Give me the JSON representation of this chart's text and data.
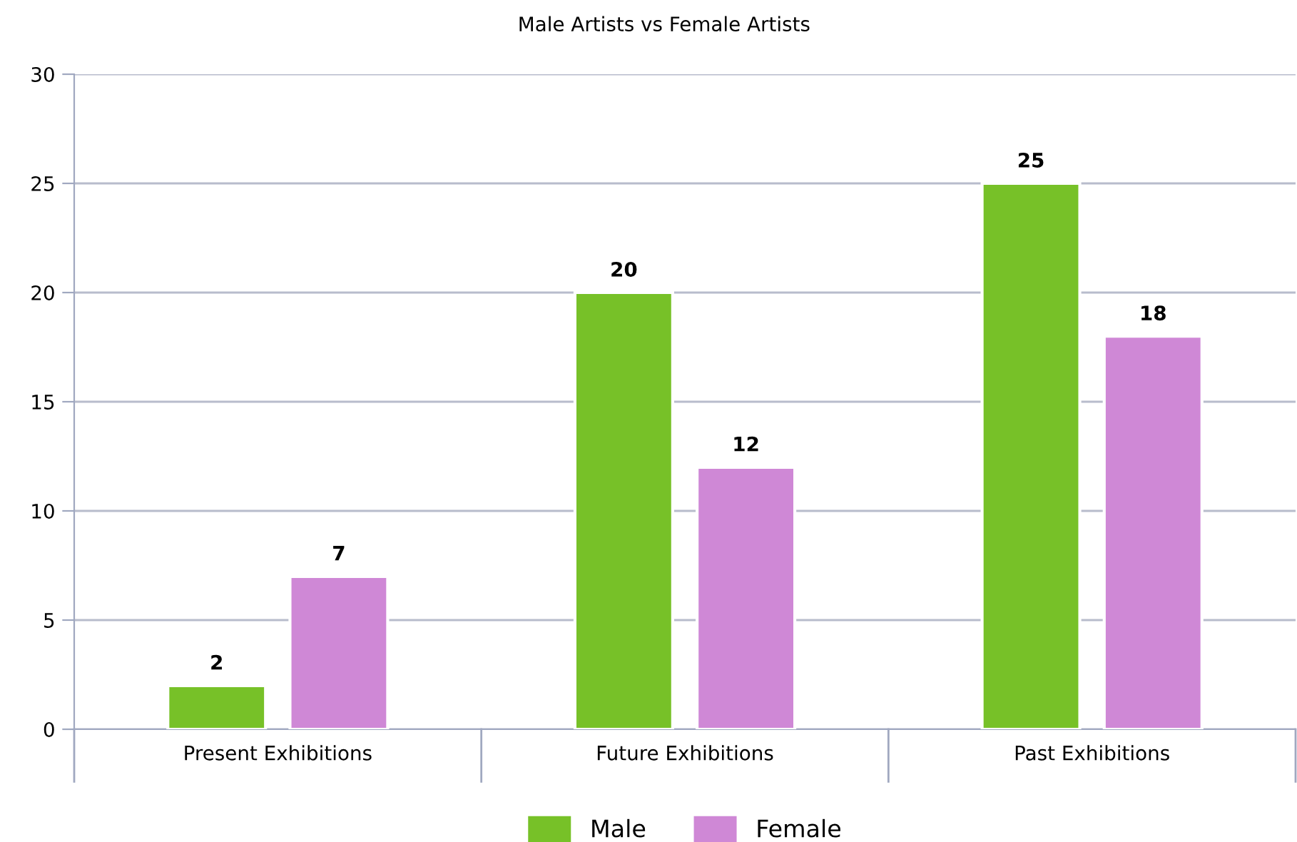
{
  "chart_data": {
    "type": "bar",
    "title": "Male Artists vs Female Artists",
    "categories": [
      "Present Exhibitions",
      "Future Exhibitions",
      "Past Exhibitions"
    ],
    "series": [
      {
        "name": "Male",
        "color": "#77c128",
        "values": [
          2,
          20,
          25
        ]
      },
      {
        "name": "Female",
        "color": "#cf88d6",
        "values": [
          7,
          12,
          18
        ]
      }
    ],
    "ylim": [
      0,
      30
    ],
    "yticks": [
      0,
      5,
      10,
      15,
      20,
      25,
      30
    ],
    "grid": "y",
    "legend": "bottom",
    "data_labels": true
  }
}
